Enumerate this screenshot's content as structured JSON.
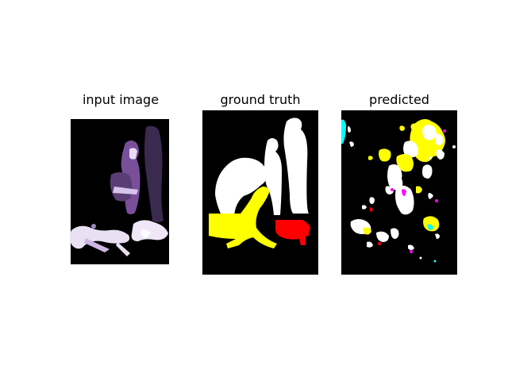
{
  "panels": [
    {
      "title": "input image"
    },
    {
      "title": "ground truth"
    },
    {
      "title": "predicted"
    }
  ],
  "colors": {
    "background_mask": "#000000",
    "person_mask": "#ffffff",
    "dog_mask": "#ffff00",
    "cat_mask": "#ff0000",
    "noise_magenta": "#ff00ff",
    "noise_cyan": "#00ffff",
    "photo_tint": "#c9b2e6"
  }
}
